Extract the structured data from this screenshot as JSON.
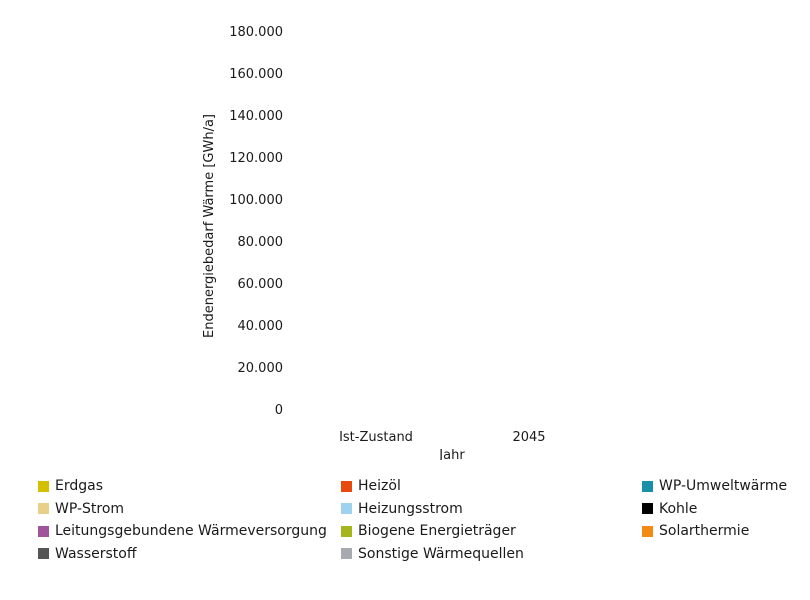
{
  "chart_data": {
    "type": "bar",
    "stacked": true,
    "categories": [
      "Ist-Zustand",
      "2045"
    ],
    "xlabel": "Jahr",
    "ylabel": "Endenergiebedarf Wärme [GWh/a]",
    "ylim": [
      0,
      180000
    ],
    "yticks": [
      0,
      20000,
      40000,
      60000,
      80000,
      100000,
      120000,
      140000,
      160000,
      180000
    ],
    "ytick_labels": [
      "0",
      "20.000",
      "40.000",
      "60.000",
      "80.000",
      "100.000",
      "120.000",
      "140.000",
      "160.000",
      "180.000"
    ],
    "grid": false,
    "legend_position": "bottom",
    "series": [
      {
        "name": "Erdgas",
        "color": "#d4c000",
        "values": [
          0,
          0
        ]
      },
      {
        "name": "Heizöl",
        "color": "#e8490f",
        "values": [
          0,
          0
        ]
      },
      {
        "name": "WP-Umweltwärme",
        "color": "#1a8fa8",
        "values": [
          0,
          0
        ]
      },
      {
        "name": "WP-Strom",
        "color": "#e8cf8a",
        "values": [
          0,
          0
        ]
      },
      {
        "name": "Heizungsstrom",
        "color": "#9fd2ef",
        "values": [
          0,
          0
        ]
      },
      {
        "name": "Kohle",
        "color": "#000000",
        "values": [
          0,
          0
        ]
      },
      {
        "name": "Leitungsgebundene Wärmeversorgung",
        "color": "#a0559a",
        "values": [
          0,
          0
        ]
      },
      {
        "name": "Biogene Energieträger",
        "color": "#a4b51e",
        "values": [
          0,
          0
        ]
      },
      {
        "name": "Solarthermie",
        "color": "#f28a14",
        "values": [
          0,
          0
        ]
      },
      {
        "name": "Wasserstoff",
        "color": "#555555",
        "values": [
          0,
          0
        ]
      },
      {
        "name": "Sonstige Wärmequellen",
        "color": "#a6abb1",
        "values": [
          0,
          0
        ]
      }
    ]
  }
}
